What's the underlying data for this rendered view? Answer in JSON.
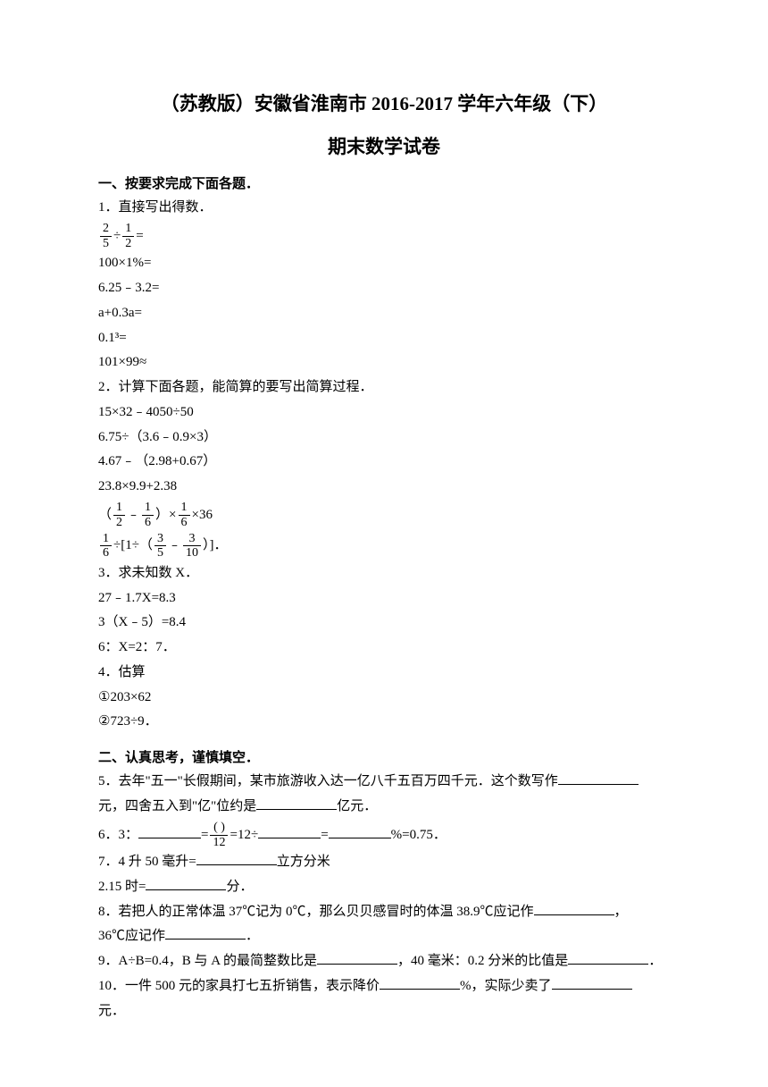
{
  "title": {
    "line1": "（苏教版）安徽省淮南市 2016-2017 学年六年级（下）",
    "line2": "期末数学试卷"
  },
  "section1": {
    "header": "一、按要求完成下面各题．",
    "q1_label": "1．直接写出得数．",
    "q1_items": {
      "item2": "100×1%=",
      "item3": "6.25﹣3.2=",
      "item4": "a+0.3a=",
      "item5": "0.1³=",
      "item6": "101×99≈"
    },
    "q2_label": "2．计算下面各题，能简算的要写出简算过程．",
    "q2_items": {
      "item1": "15×32﹣4050÷50",
      "item2": "6.75÷（3.6﹣0.9×3）",
      "item3": "4.67﹣（2.98+0.67）",
      "item4": "23.8×9.9+2.38"
    },
    "q3_label": "3．求未知数 X．",
    "q3_items": {
      "item1": "27﹣1.7X=8.3",
      "item2": "3（X﹣5）=8.4",
      "item3": "6：X=2：7．"
    },
    "q4_label": "4．估算",
    "q4_items": {
      "item1": "①203×62",
      "item2": "②723÷9．"
    }
  },
  "section2": {
    "header": "二、认真思考，谨慎填空．",
    "q5_part1": "5．去年\"五一\"长假期间，某市旅游收入达一亿八千五百万四千元．这个数写作",
    "q5_part2": "元，四舍五入到\"亿\"位约是",
    "q5_part3": "亿元．",
    "q6_part1": "6．3：",
    "q6_part2": "=",
    "q6_part3": "=12÷",
    "q6_part4": "=",
    "q6_part5": "%=0.75．",
    "q7_part1": "7．4 升 50 毫升=",
    "q7_part2": "立方分米",
    "q7_part3": "2.15 时=",
    "q7_part4": "分．",
    "q8_part1": "8．若把人的正常体温 37℃记为 0℃，那么贝贝感冒时的体温 38.9℃应记作",
    "q8_part2": "，",
    "q8_part3": "36℃应记作",
    "q8_part4": "．",
    "q9_part1": "9．A÷B=0.4，B 与 A 的最简整数比是",
    "q9_part2": "，40 毫米：0.2 分米的比值是",
    "q9_part3": "．",
    "q10_part1": "10．一件 500 元的家具打七五折销售，表示降价",
    "q10_part2": "%，实际少卖了",
    "q10_part3": "元．"
  },
  "fractions": {
    "two": "2",
    "five": "5",
    "one": "1",
    "six": "6",
    "three": "3",
    "ten": "10",
    "twelve": "12",
    "paren": "( )"
  }
}
